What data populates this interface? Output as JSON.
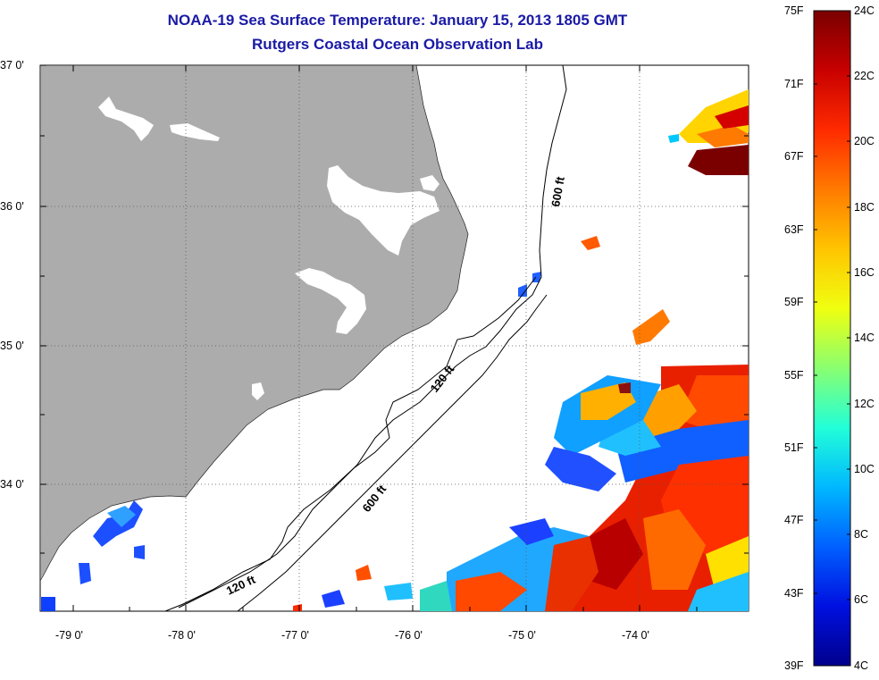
{
  "title": "NOAA-19 Sea Surface Temperature:  January 15, 2013 1805 GMT",
  "subtitle": "Rutgers Coastal Ocean Observation Lab",
  "lat_labels": [
    "37 0'",
    "36 0'",
    "35 0'",
    "34 0'"
  ],
  "lon_labels": [
    "-79 0'",
    "-78 0'",
    "-77 0'",
    "-76 0'",
    "-75 0'",
    "-74 0'"
  ],
  "contour_labels": [
    "600 ft",
    "120 ft",
    "600 ft",
    "120 ft"
  ],
  "colorbar": {
    "fahrenheit": [
      "75F",
      "71F",
      "67F",
      "63F",
      "59F",
      "55F",
      "51F",
      "47F",
      "43F",
      "39F"
    ],
    "celsius": [
      "24C",
      "22C",
      "20C",
      "18C",
      "16C",
      "14C",
      "12C",
      "10C",
      "8C",
      "6C",
      "4C"
    ],
    "colors": [
      "#7a0000",
      "#c80000",
      "#ff2a00",
      "#ff7a00",
      "#ffc400",
      "#f0ff10",
      "#8aff70",
      "#22ffd8",
      "#00b8ff",
      "#0060ff",
      "#0010e0",
      "#00008c"
    ]
  },
  "colors": {
    "title": "#1a1aa6",
    "land": "#acacac",
    "ocean": "#ffffff"
  }
}
